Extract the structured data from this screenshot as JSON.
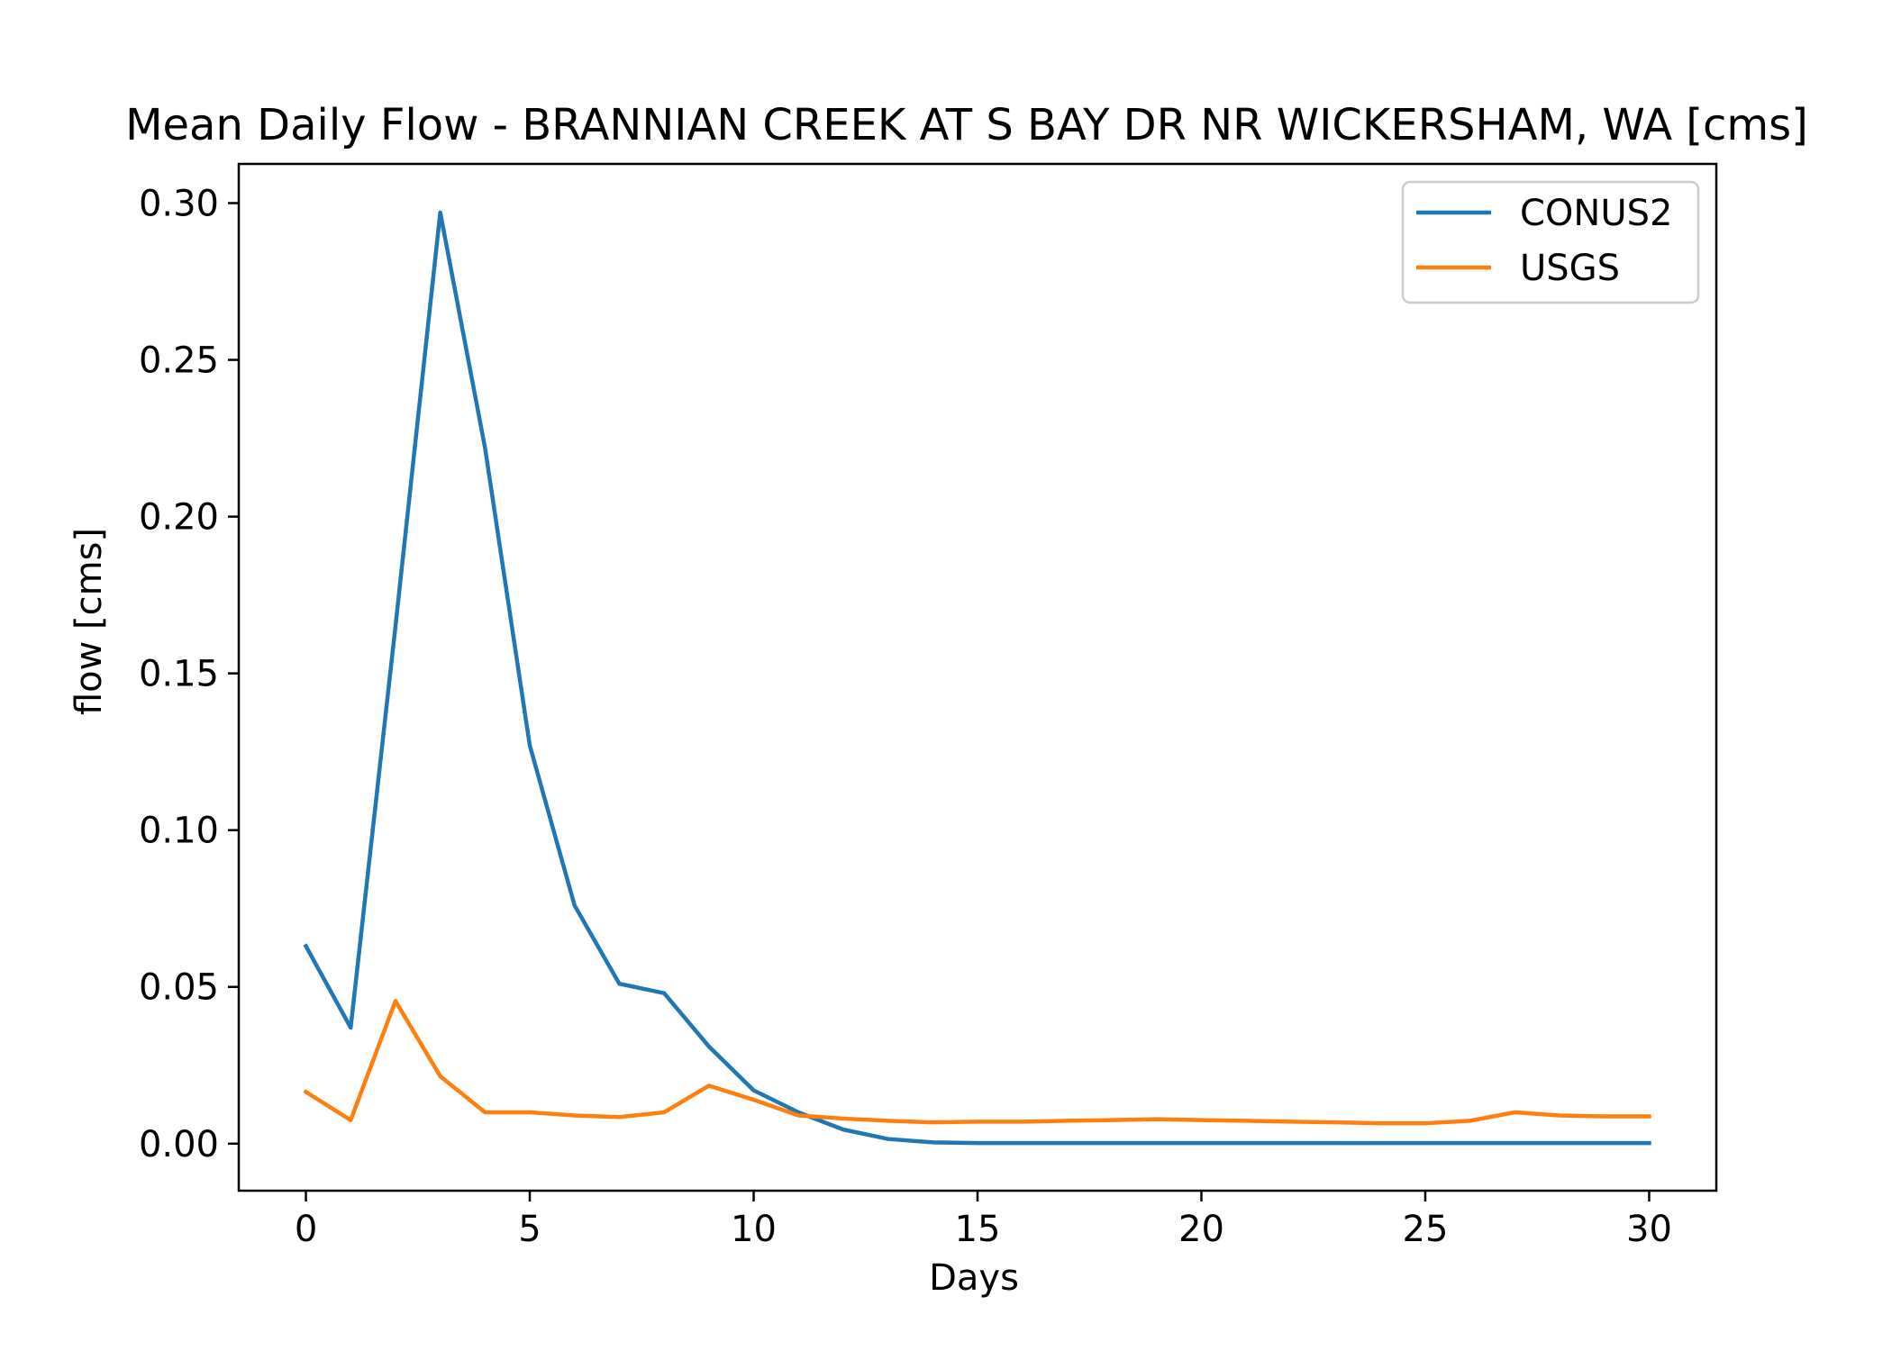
{
  "chart_data": {
    "type": "line",
    "title": "Mean Daily Flow - BRANNIAN CREEK AT S BAY DR NR WICKERSHAM, WA [cms]",
    "xlabel": "Days",
    "ylabel": "flow [cms]",
    "xlim": [
      -1.5,
      31.5
    ],
    "ylim": [
      -0.015,
      0.3125
    ],
    "x_ticks": [
      0,
      5,
      10,
      15,
      20,
      25,
      30
    ],
    "x_tick_labels": [
      "0",
      "5",
      "10",
      "15",
      "20",
      "25",
      "30"
    ],
    "y_ticks": [
      0.0,
      0.05,
      0.1,
      0.15,
      0.2,
      0.25,
      0.3
    ],
    "y_tick_labels": [
      "0.00",
      "0.05",
      "0.10",
      "0.15",
      "0.20",
      "0.25",
      "0.30"
    ],
    "grid": false,
    "legend_position": "top-right",
    "x": [
      0,
      1,
      2,
      3,
      4,
      5,
      6,
      7,
      8,
      9,
      10,
      11,
      12,
      13,
      14,
      15,
      16,
      17,
      18,
      19,
      20,
      21,
      22,
      23,
      24,
      25,
      26,
      27,
      28,
      29,
      30
    ],
    "series": [
      {
        "name": "CONUS2",
        "color": "#1f77b4",
        "values": [
          0.063,
          0.037,
          0.165,
          0.297,
          0.222,
          0.127,
          0.076,
          0.051,
          0.048,
          0.031,
          0.017,
          0.01,
          0.0045,
          0.0015,
          0.0004,
          0.0002,
          0.0002,
          0.0002,
          0.0002,
          0.0002,
          0.0002,
          0.0002,
          0.0002,
          0.0002,
          0.0002,
          0.0002,
          0.0002,
          0.0002,
          0.0002,
          0.0002,
          0.0002
        ]
      },
      {
        "name": "USGS",
        "color": "#ff7f0e",
        "values": [
          0.0165,
          0.0075,
          0.0455,
          0.0215,
          0.01,
          0.01,
          0.009,
          0.0085,
          0.01,
          0.0185,
          0.014,
          0.009,
          0.008,
          0.0073,
          0.0068,
          0.007,
          0.007,
          0.0073,
          0.0075,
          0.0078,
          0.0075,
          0.0073,
          0.007,
          0.0068,
          0.0065,
          0.0065,
          0.0073,
          0.01,
          0.009,
          0.0087,
          0.0087
        ]
      }
    ]
  }
}
